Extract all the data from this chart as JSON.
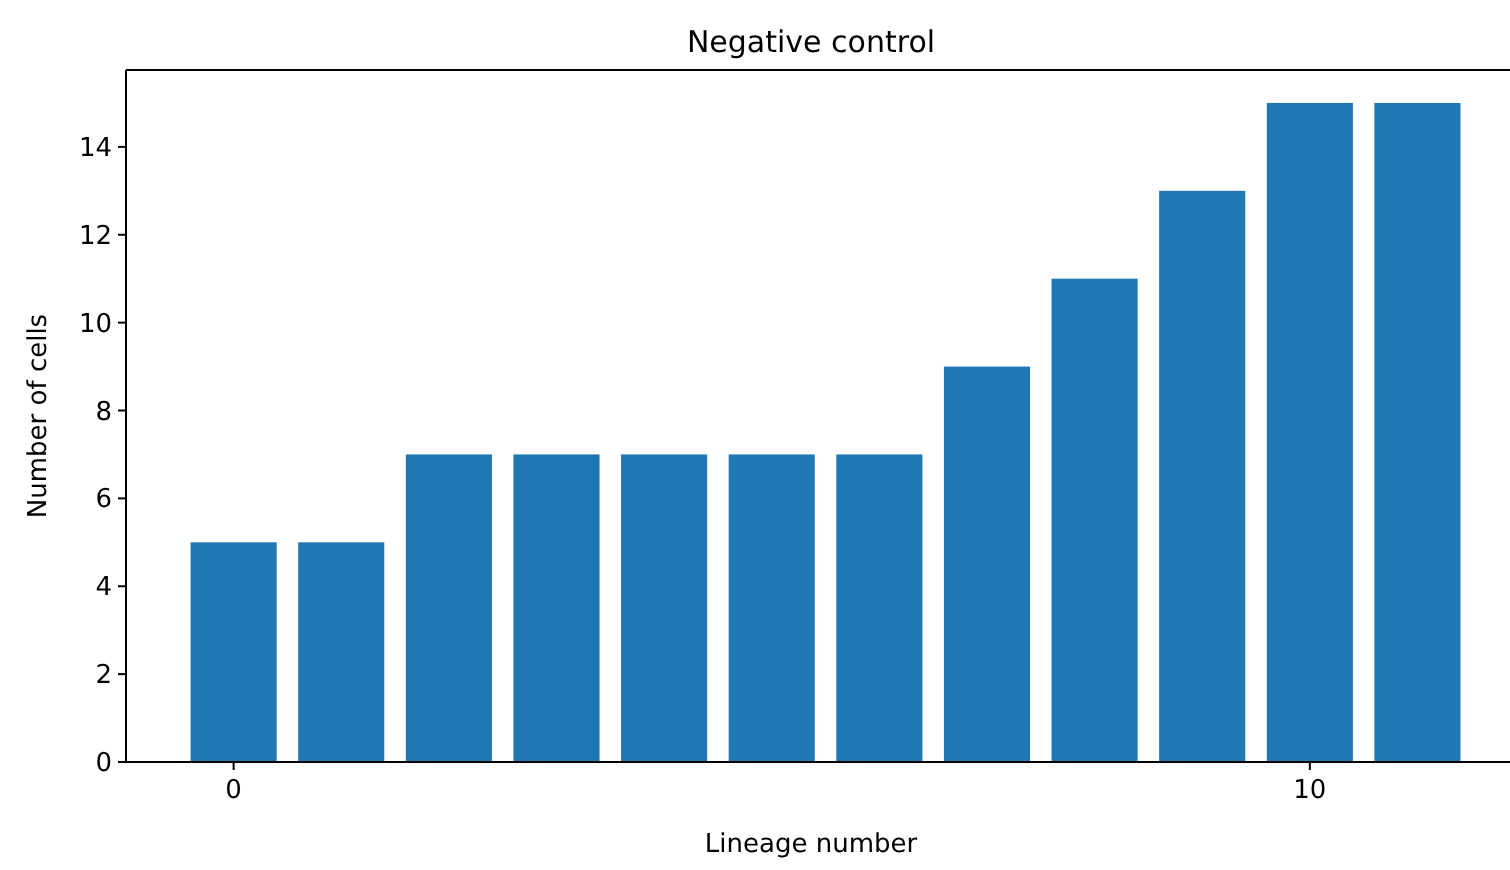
{
  "chart_data": {
    "type": "bar",
    "title": "Negative control",
    "xlabel": "Lineage number",
    "ylabel": "Number of cells",
    "x": [
      0,
      1,
      2,
      3,
      4,
      5,
      6,
      7,
      8,
      9,
      10,
      11
    ],
    "values": [
      5,
      5,
      7,
      7,
      7,
      7,
      7,
      9,
      11,
      13,
      15,
      15
    ],
    "color": "#1f77b4",
    "xlim": [
      -1,
      11.86
    ],
    "xticks": [
      0,
      10
    ],
    "ylim": [
      0,
      15.75
    ],
    "yticks": [
      0,
      2,
      4,
      6,
      8,
      10,
      12,
      14
    ]
  }
}
